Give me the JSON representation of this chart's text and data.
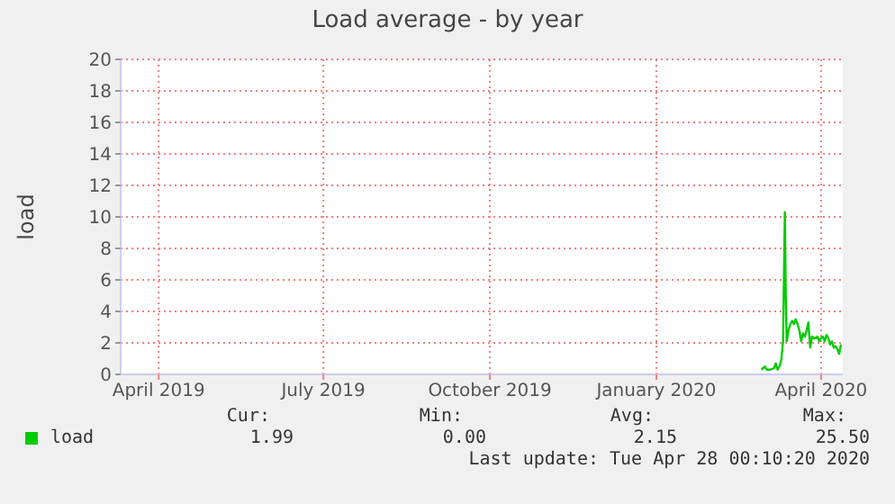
{
  "chart_data": {
    "type": "line",
    "title": "Load average - by year",
    "ylabel": "load",
    "x": [
      "2020-03-14",
      "2020-03-16",
      "2020-03-17",
      "2020-03-19",
      "2020-03-21",
      "2020-03-22",
      "2020-03-23",
      "2020-03-24",
      "2020-03-25",
      "2020-03-26",
      "2020-03-27",
      "2020-03-27T12:00",
      "2020-03-28",
      "2020-03-29",
      "2020-03-30",
      "2020-03-31",
      "2020-04-01",
      "2020-04-02",
      "2020-04-03",
      "2020-04-04",
      "2020-04-05",
      "2020-04-06",
      "2020-04-07",
      "2020-04-08",
      "2020-04-09",
      "2020-04-10",
      "2020-04-11",
      "2020-04-12",
      "2020-04-13",
      "2020-04-14",
      "2020-04-15",
      "2020-04-16",
      "2020-04-17",
      "2020-04-18",
      "2020-04-19",
      "2020-04-20",
      "2020-04-21",
      "2020-04-22",
      "2020-04-23",
      "2020-04-24",
      "2020-04-25",
      "2020-04-26",
      "2020-04-27"
    ],
    "series": [
      {
        "name": "load",
        "color": "#00cc00",
        "values": [
          0.3,
          0.5,
          0.3,
          0.3,
          0.4,
          0.7,
          0.3,
          0.5,
          0.9,
          2.1,
          10.3,
          5.1,
          2.1,
          2.8,
          3.2,
          3.4,
          3.2,
          3.5,
          3.2,
          2.8,
          2.1,
          2.6,
          2.4,
          2.8,
          3.3,
          1.7,
          2.4,
          2.3,
          2.3,
          2.4,
          2.1,
          2.3,
          2.4,
          2.1,
          2.5,
          2.3,
          1.9,
          2.1,
          1.7,
          1.8,
          1.6,
          1.3,
          1.9
        ]
      }
    ],
    "xlim": [
      "2019-03-26",
      "2020-04-28"
    ],
    "xticks": [
      {
        "value": "2019-04-16",
        "label": "April 2019"
      },
      {
        "value": "2019-07-16",
        "label": "July 2019"
      },
      {
        "value": "2019-10-16",
        "label": "October 2019"
      },
      {
        "value": "2020-01-16",
        "label": "January 2020"
      },
      {
        "value": "2020-04-16",
        "label": "April 2020"
      }
    ],
    "ylim": [
      0,
      20
    ],
    "yticks": [
      0,
      2,
      4,
      6,
      8,
      10,
      12,
      14,
      16,
      18,
      20
    ],
    "grid": true,
    "legend": "bottom left",
    "annotations": [
      "Cur:",
      "Min:",
      "Avg:",
      "Max:",
      "1.99",
      "0.00",
      "2.15",
      "25.50",
      "Last update: Tue Apr 28 00:10:20 2020"
    ]
  }
}
